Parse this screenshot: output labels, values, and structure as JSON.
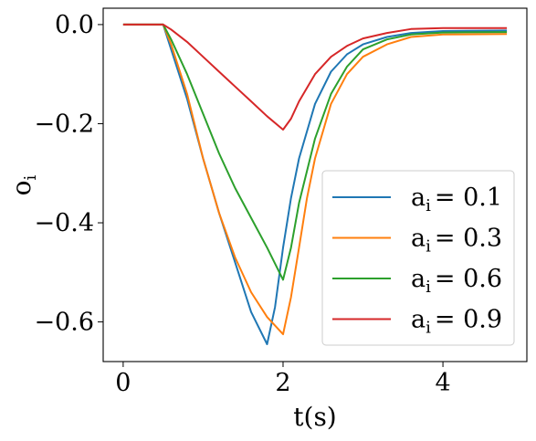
{
  "chart_data": {
    "type": "line",
    "xlabel": "t(s)",
    "ylabel": "o",
    "ylabel_sub": "i",
    "xlim": [
      -0.25,
      5.05
    ],
    "ylim": [
      -0.68,
      0.033
    ],
    "xticks": [
      0,
      2,
      4
    ],
    "xtick_labels": [
      "0",
      "2",
      "4"
    ],
    "yticks": [
      0.0,
      -0.2,
      -0.4,
      -0.6
    ],
    "ytick_labels": [
      "0.0",
      "−0.2",
      "−0.4",
      "−0.6"
    ],
    "grid": false,
    "legend": "lower-right",
    "series": [
      {
        "name": "a_i = 0.1",
        "label_var": "a",
        "label_sub": "i",
        "label_value": "= 0.1",
        "color": "#1f77b4",
        "points": [
          [
            0,
            0
          ],
          [
            0.5,
            0
          ],
          [
            0.6,
            -0.05
          ],
          [
            0.8,
            -0.15
          ],
          [
            1.0,
            -0.27
          ],
          [
            1.2,
            -0.38
          ],
          [
            1.4,
            -0.48
          ],
          [
            1.6,
            -0.58
          ],
          [
            1.8,
            -0.645
          ],
          [
            1.9,
            -0.57
          ],
          [
            2.0,
            -0.45
          ],
          [
            2.1,
            -0.35
          ],
          [
            2.2,
            -0.27
          ],
          [
            2.4,
            -0.16
          ],
          [
            2.6,
            -0.095
          ],
          [
            2.8,
            -0.06
          ],
          [
            3.0,
            -0.04
          ],
          [
            3.3,
            -0.025
          ],
          [
            3.6,
            -0.017
          ],
          [
            4.0,
            -0.013
          ],
          [
            4.8,
            -0.012
          ]
        ]
      },
      {
        "name": "a_i = 0.3",
        "label_var": "a",
        "label_sub": "i",
        "label_value": "= 0.3",
        "color": "#ff7f0e",
        "points": [
          [
            0,
            0
          ],
          [
            0.5,
            0
          ],
          [
            0.6,
            -0.04
          ],
          [
            0.8,
            -0.14
          ],
          [
            1.0,
            -0.27
          ],
          [
            1.2,
            -0.38
          ],
          [
            1.4,
            -0.47
          ],
          [
            1.6,
            -0.54
          ],
          [
            1.8,
            -0.59
          ],
          [
            2.0,
            -0.625
          ],
          [
            2.1,
            -0.55
          ],
          [
            2.2,
            -0.45
          ],
          [
            2.3,
            -0.35
          ],
          [
            2.4,
            -0.27
          ],
          [
            2.6,
            -0.16
          ],
          [
            2.8,
            -0.1
          ],
          [
            3.0,
            -0.065
          ],
          [
            3.3,
            -0.04
          ],
          [
            3.6,
            -0.025
          ],
          [
            4.0,
            -0.02
          ],
          [
            4.8,
            -0.019
          ]
        ]
      },
      {
        "name": "a_i = 0.6",
        "label_var": "a",
        "label_sub": "i",
        "label_value": "= 0.6",
        "color": "#2ca02c",
        "points": [
          [
            0,
            0
          ],
          [
            0.5,
            0
          ],
          [
            0.6,
            -0.03
          ],
          [
            0.8,
            -0.1
          ],
          [
            1.0,
            -0.18
          ],
          [
            1.2,
            -0.26
          ],
          [
            1.4,
            -0.33
          ],
          [
            1.6,
            -0.39
          ],
          [
            1.8,
            -0.45
          ],
          [
            2.0,
            -0.515
          ],
          [
            2.1,
            -0.45
          ],
          [
            2.2,
            -0.36
          ],
          [
            2.4,
            -0.23
          ],
          [
            2.6,
            -0.14
          ],
          [
            2.8,
            -0.085
          ],
          [
            3.0,
            -0.05
          ],
          [
            3.3,
            -0.03
          ],
          [
            3.6,
            -0.02
          ],
          [
            4.0,
            -0.016
          ],
          [
            4.8,
            -0.015
          ]
        ]
      },
      {
        "name": "a_i = 0.9",
        "label_var": "a",
        "label_sub": "i",
        "label_value": "= 0.9",
        "color": "#d62728",
        "points": [
          [
            0,
            0
          ],
          [
            0.5,
            0
          ],
          [
            0.6,
            -0.01
          ],
          [
            0.8,
            -0.035
          ],
          [
            1.0,
            -0.065
          ],
          [
            1.2,
            -0.095
          ],
          [
            1.4,
            -0.125
          ],
          [
            1.6,
            -0.155
          ],
          [
            1.8,
            -0.185
          ],
          [
            2.0,
            -0.212
          ],
          [
            2.1,
            -0.19
          ],
          [
            2.2,
            -0.155
          ],
          [
            2.4,
            -0.1
          ],
          [
            2.6,
            -0.065
          ],
          [
            2.8,
            -0.043
          ],
          [
            3.0,
            -0.028
          ],
          [
            3.3,
            -0.017
          ],
          [
            3.6,
            -0.009
          ],
          [
            4.0,
            -0.007
          ],
          [
            4.8,
            -0.007
          ]
        ]
      }
    ]
  }
}
